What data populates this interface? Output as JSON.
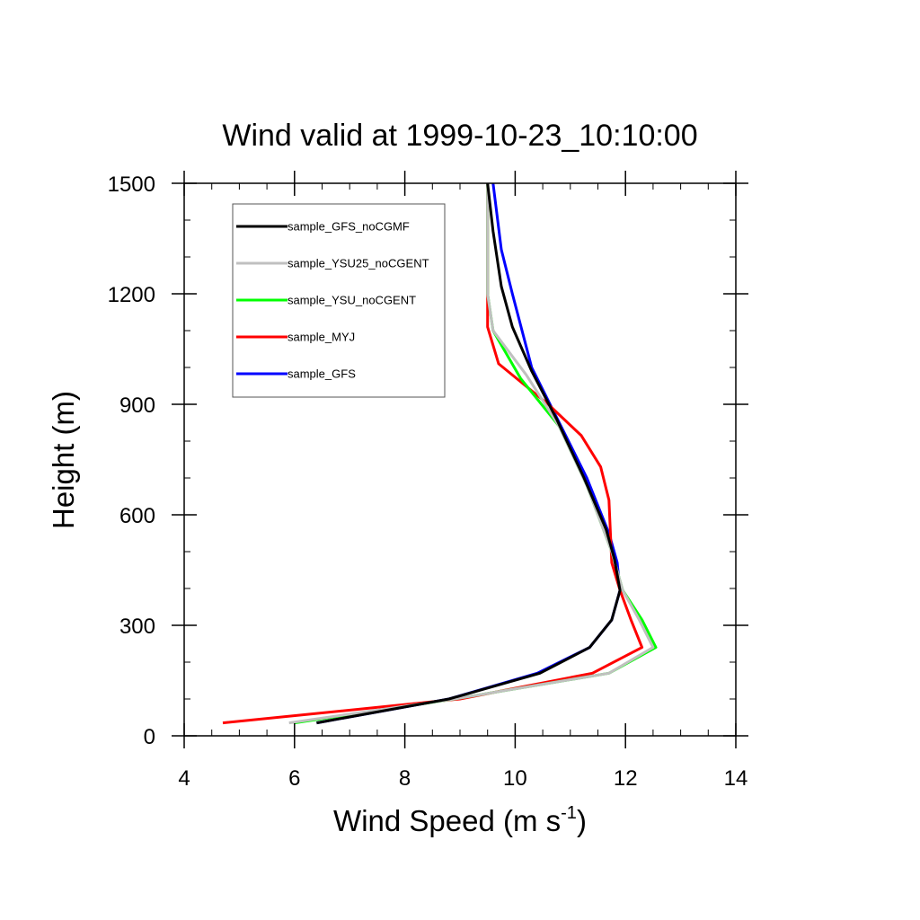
{
  "chart_data": {
    "type": "line",
    "title": "Wind valid at 1999-10-23_10:10:00",
    "xlabel": "Wind Speed (m s",
    "xlabel_sup": "-1",
    "xlabel_close": ")",
    "ylabel": "Height (m)",
    "xlim": [
      4,
      14
    ],
    "ylim": [
      0,
      1500
    ],
    "x_ticks": [
      4,
      6,
      8,
      10,
      12,
      14
    ],
    "y_ticks": [
      0,
      300,
      600,
      900,
      1200,
      1500
    ],
    "legend_position": "top-left",
    "series": [
      {
        "name": "sample_GFS",
        "color": "#0000ff",
        "x": [
          6.4,
          8.8,
          10.4,
          11.35,
          11.75,
          11.9,
          11.85,
          11.7,
          11.3,
          10.8,
          10.3,
          9.95,
          9.75,
          9.6
        ],
        "y": [
          35,
          100,
          170,
          240,
          315,
          395,
          470,
          550,
          700,
          850,
          1000,
          1200,
          1320,
          1500
        ]
      },
      {
        "name": "sample_MYJ",
        "color": "#ff0000",
        "x": [
          4.7,
          9.0,
          11.4,
          12.3,
          12.1,
          11.9,
          11.75,
          11.7,
          11.55,
          11.2,
          10.6,
          9.7,
          9.5,
          9.5
        ],
        "y": [
          35,
          100,
          170,
          240,
          315,
          395,
          470,
          640,
          730,
          815,
          900,
          1010,
          1110,
          1500
        ]
      },
      {
        "name": "sample_YSU_noCGENT",
        "color": "#00ff00",
        "x": [
          6.0,
          8.9,
          11.7,
          12.55,
          12.3,
          11.95,
          11.75,
          11.3,
          10.8,
          10.1,
          9.6,
          9.5,
          9.5
        ],
        "y": [
          35,
          100,
          170,
          240,
          315,
          395,
          500,
          680,
          840,
          970,
          1100,
          1200,
          1500
        ]
      },
      {
        "name": "sample_YSU25_noCGENT",
        "color": "#c0c0c0",
        "x": [
          5.9,
          8.9,
          11.7,
          12.5,
          12.25,
          11.95,
          11.75,
          11.3,
          10.8,
          10.2,
          9.6,
          9.5,
          9.5
        ],
        "y": [
          35,
          100,
          170,
          240,
          315,
          395,
          500,
          680,
          840,
          980,
          1100,
          1200,
          1500
        ]
      },
      {
        "name": "sample_GFS_noCGMF",
        "color": "#000000",
        "x": [
          6.4,
          8.8,
          10.45,
          11.35,
          11.75,
          11.9,
          11.8,
          11.65,
          11.25,
          10.75,
          10.3,
          9.95,
          9.75,
          9.6,
          9.5
        ],
        "y": [
          35,
          100,
          170,
          240,
          315,
          395,
          480,
          560,
          700,
          860,
          990,
          1110,
          1220,
          1370,
          1500
        ]
      }
    ],
    "legend_order": [
      "sample_GFS_noCGMF",
      "sample_YSU25_noCGENT",
      "sample_YSU_noCGENT",
      "sample_MYJ",
      "sample_GFS"
    ]
  }
}
